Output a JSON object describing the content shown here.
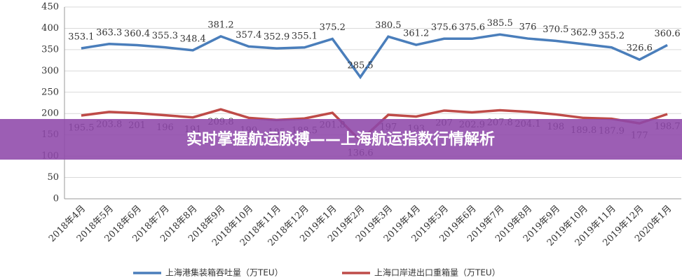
{
  "banner": "实时掌握航运脉搏——上海航运指数行情解析",
  "chart_data": {
    "type": "line",
    "categories": [
      "2018年4月",
      "2018年5月",
      "2018年6月",
      "2018年7月",
      "2018年8月",
      "2018年9月",
      "2018年10月",
      "2018年11月",
      "2018年12月",
      "2019年1月",
      "2019年2月",
      "2019年3月",
      "2019年4月",
      "2019年5月",
      "2019年6月",
      "2019年7月",
      "2019年8月",
      "2019年9月",
      "2019年10月",
      "2019年11月",
      "2019年12月",
      "2020年1月"
    ],
    "series": [
      {
        "name": "上海港集装箱吞吐量（万TEU）",
        "color": "#4a7ebb",
        "values": [
          353.1,
          363.3,
          360.4,
          355.3,
          348.4,
          381.2,
          357.4,
          352.9,
          355.1,
          375.2,
          285.5,
          380.5,
          361.2,
          375.6,
          375.6,
          385.5,
          376,
          370.5,
          362.9,
          355.2,
          326.6,
          360.6
        ]
      },
      {
        "name": "上海口岸进出口重箱量（万TEU）",
        "color": "#be4b48",
        "values": [
          195.5,
          203.8,
          201,
          196,
          191,
          209.8,
          190,
          185,
          188.5,
          201.8,
          136.6,
          197,
          193,
          207,
          202.9,
          207.8,
          204.1,
          198,
          189.8,
          187.9,
          177,
          198.7
        ]
      }
    ],
    "ylim": [
      0,
      450
    ],
    "yticks": [
      0,
      50,
      100,
      150,
      200,
      250,
      300,
      350,
      400,
      450
    ],
    "grid": true
  }
}
